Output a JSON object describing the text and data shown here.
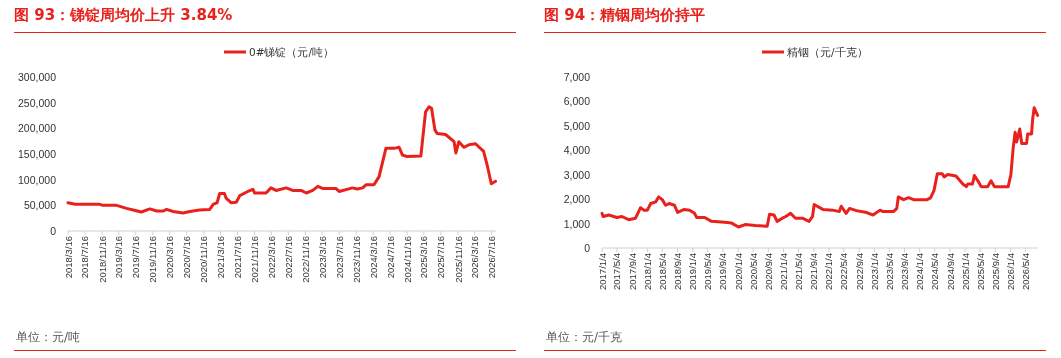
{
  "chart_data": [
    {
      "type": "line",
      "title": "图 93：锑锭周均价上升 3.84%",
      "legend": "top",
      "grid": false,
      "marker": "none",
      "line_style": "solid",
      "xlim": [
        "2018-03-16",
        "2026-08-16"
      ],
      "xticks": [
        {
          "value": "2018-03-16",
          "label": "2018/3/16"
        },
        {
          "value": "2018-07-16",
          "label": "2018/7/16"
        },
        {
          "value": "2018-11-16",
          "label": "2018/11/16"
        },
        {
          "value": "2019-03-16",
          "label": "2019/3/16"
        },
        {
          "value": "2019-07-16",
          "label": "2019/7/16"
        },
        {
          "value": "2019-11-16",
          "label": "2019/11/16"
        },
        {
          "value": "2020-03-16",
          "label": "2020/3/16"
        },
        {
          "value": "2020-07-16",
          "label": "2020/7/16"
        },
        {
          "value": "2020-11-16",
          "label": "2020/11/16"
        },
        {
          "value": "2021-03-16",
          "label": "2021/3/16"
        },
        {
          "value": "2021-07-16",
          "label": "2021/7/16"
        },
        {
          "value": "2021-11-16",
          "label": "2021/11/16"
        },
        {
          "value": "2022-03-16",
          "label": "2022/3/16"
        },
        {
          "value": "2022-07-16",
          "label": "2022/7/16"
        },
        {
          "value": "2022-11-16",
          "label": "2022/11/16"
        },
        {
          "value": "2023-03-16",
          "label": "2023/3/16"
        },
        {
          "value": "2023-07-16",
          "label": "2023/7/16"
        },
        {
          "value": "2023-11-16",
          "label": "2023/11/16"
        },
        {
          "value": "2024-03-16",
          "label": "2024/3/16"
        },
        {
          "value": "2024-07-16",
          "label": "2024/7/16"
        },
        {
          "value": "2024-11-16",
          "label": "2024/11/16"
        },
        {
          "value": "2025-03-16",
          "label": "2025/3/16"
        },
        {
          "value": "2025-07-16",
          "label": "2025/7/16"
        },
        {
          "value": "2025-11-16",
          "label": "2025/11/16"
        },
        {
          "value": "2026-03-16",
          "label": "2026/3/16"
        },
        {
          "value": "2026-07-16",
          "label": "2026/7/16"
        }
      ],
      "ylim": [
        0,
        300000
      ],
      "yticks": [
        {
          "value": 0,
          "label": "0"
        },
        {
          "value": 50000,
          "label": "50,000"
        },
        {
          "value": 100000,
          "label": "100,000"
        },
        {
          "value": 150000,
          "label": "150,000"
        },
        {
          "value": 200000,
          "label": "200,000"
        },
        {
          "value": 250000,
          "label": "250,000"
        },
        {
          "value": 300000,
          "label": "300,000"
        }
      ],
      "annotations": [
        "单位：元/吨"
      ],
      "series": [
        {
          "name": "0#锑锭（元/吨）",
          "color": "#e8211c",
          "x": [
            "2018-03-16",
            "2018-05-07",
            "2018-10-31",
            "2018-11-22",
            "2019-03-01",
            "2019-05-10",
            "2019-06-28",
            "2019-08-25",
            "2019-10-25",
            "2019-12-13",
            "2020-01-31",
            "2020-02-22",
            "2020-04-10",
            "2020-06-19",
            "2020-08-07",
            "2020-10-16",
            "2020-12-28",
            "2021-01-22",
            "2021-02-19",
            "2021-03-10",
            "2021-04-13",
            "2021-04-25",
            "2021-06-01",
            "2021-07-07",
            "2021-08-01",
            "2021-09-28",
            "2021-11-04",
            "2021-11-16",
            "2022-02-06",
            "2022-03-13",
            "2022-04-19",
            "2022-07-01",
            "2022-08-16",
            "2022-10-16",
            "2022-11-22",
            "2023-01-07",
            "2023-02-13",
            "2023-03-19",
            "2023-06-22",
            "2023-07-16",
            "2023-10-19",
            "2023-11-25",
            "2024-01-01",
            "2024-01-25",
            "2024-03-22",
            "2024-04-28",
            "2024-06-16",
            "2024-08-13",
            "2024-09-19",
            "2024-10-13",
            "2024-11-16",
            "2025-02-22",
            "2025-03-28",
            "2025-04-22",
            "2025-05-10",
            "2025-06-03",
            "2025-06-19",
            "2025-08-19",
            "2025-10-19",
            "2025-11-01",
            "2025-11-22",
            "2025-12-28",
            "2026-02-03",
            "2026-03-22",
            "2026-05-19",
            "2026-06-13",
            "2026-07-13",
            "2026-08-13"
          ],
          "values": [
            55000,
            52000,
            52000,
            50000,
            50000,
            44000,
            41000,
            37000,
            43000,
            39000,
            39000,
            42000,
            38000,
            35000,
            38000,
            41000,
            42000,
            52000,
            55000,
            73000,
            73000,
            64000,
            55000,
            56000,
            69000,
            77000,
            81000,
            74000,
            74000,
            84000,
            79000,
            84000,
            79000,
            79000,
            74000,
            79000,
            87000,
            83000,
            83000,
            77000,
            84000,
            82000,
            84000,
            90000,
            90000,
            106000,
            161000,
            161000,
            163000,
            148000,
            145000,
            146000,
            232000,
            242000,
            239000,
            197000,
            190000,
            188000,
            174000,
            152000,
            174000,
            163000,
            168000,
            170000,
            155000,
            129000,
            92000,
            97000
          ]
        }
      ]
    },
    {
      "type": "line",
      "title": "图 94：精铟周均价持平",
      "legend": "top",
      "grid": false,
      "marker": "none",
      "line_style": "solid",
      "xlim": [
        "2017-01-04",
        "2026-08-13"
      ],
      "xticks": [
        {
          "value": "2017-01-04",
          "label": "2017/1/4"
        },
        {
          "value": "2017-05-04",
          "label": "2017/5/4"
        },
        {
          "value": "2017-09-04",
          "label": "2017/9/4"
        },
        {
          "value": "2018-01-04",
          "label": "2018/1/4"
        },
        {
          "value": "2018-05-04",
          "label": "2018/5/4"
        },
        {
          "value": "2018-09-04",
          "label": "2018/9/4"
        },
        {
          "value": "2019-01-04",
          "label": "2019/1/4"
        },
        {
          "value": "2019-05-04",
          "label": "2019/5/4"
        },
        {
          "value": "2019-09-04",
          "label": "2019/9/4"
        },
        {
          "value": "2020-01-04",
          "label": "2020/1/4"
        },
        {
          "value": "2020-05-04",
          "label": "2020/5/4"
        },
        {
          "value": "2020-09-04",
          "label": "2020/9/4"
        },
        {
          "value": "2021-01-04",
          "label": "2021/1/4"
        },
        {
          "value": "2021-05-04",
          "label": "2021/5/4"
        },
        {
          "value": "2021-09-04",
          "label": "2021/9/4"
        },
        {
          "value": "2022-01-04",
          "label": "2022/1/4"
        },
        {
          "value": "2022-05-04",
          "label": "2022/5/4"
        },
        {
          "value": "2022-09-04",
          "label": "2022/9/4"
        },
        {
          "value": "2023-01-04",
          "label": "2023/1/4"
        },
        {
          "value": "2023-05-04",
          "label": "2023/5/4"
        },
        {
          "value": "2023-09-04",
          "label": "2023/9/4"
        },
        {
          "value": "2024-01-04",
          "label": "2024/1/4"
        },
        {
          "value": "2024-05-04",
          "label": "2024/5/4"
        },
        {
          "value": "2024-09-04",
          "label": "2024/9/4"
        },
        {
          "value": "2025-01-04",
          "label": "2025/1/4"
        },
        {
          "value": "2025-05-04",
          "label": "2025/5/4"
        },
        {
          "value": "2025-09-04",
          "label": "2025/9/4"
        },
        {
          "value": "2026-01-04",
          "label": "2026/1/4"
        },
        {
          "value": "2026-05-04",
          "label": "2026/5/4"
        }
      ],
      "ylim": [
        0,
        7000
      ],
      "yticks": [
        {
          "value": 0,
          "label": "0"
        },
        {
          "value": 1000,
          "label": "1,000"
        },
        {
          "value": 2000,
          "label": "2,000"
        },
        {
          "value": 3000,
          "label": "3,000"
        },
        {
          "value": 4000,
          "label": "4,000"
        },
        {
          "value": 5000,
          "label": "5,000"
        },
        {
          "value": 6000,
          "label": "6,000"
        },
        {
          "value": 7000,
          "label": "7,000"
        }
      ],
      "annotations": [
        "单位：元/千克"
      ],
      "series": [
        {
          "name": "精铟（元/千克）",
          "color": "#e8211c",
          "x": [
            "2017-01-04",
            "2017-01-13",
            "2017-02-28",
            "2017-05-04",
            "2017-06-13",
            "2017-08-07",
            "2017-10-01",
            "2017-11-10",
            "2017-12-07",
            "2018-01-04",
            "2018-01-31",
            "2018-03-13",
            "2018-04-04",
            "2018-05-04",
            "2018-05-31",
            "2018-06-28",
            "2018-08-10",
            "2018-09-04",
            "2018-10-28",
            "2018-12-10",
            "2019-01-19",
            "2019-02-04",
            "2019-04-10",
            "2019-06-04",
            "2019-09-19",
            "2019-11-13",
            "2020-01-07",
            "2020-03-01",
            "2020-05-22",
            "2020-08-25",
            "2020-09-13",
            "2020-10-19",
            "2020-11-13",
            "2020-12-25",
            "2021-01-22",
            "2021-03-01",
            "2021-04-10",
            "2021-06-04",
            "2021-07-28",
            "2021-08-25",
            "2021-09-07",
            "2021-11-16",
            "2022-02-04",
            "2022-03-28",
            "2022-04-13",
            "2022-05-22",
            "2022-06-19",
            "2022-08-13",
            "2022-11-04",
            "2022-12-25",
            "2023-02-19",
            "2023-03-16",
            "2023-06-07",
            "2023-07-04",
            "2023-07-16",
            "2023-08-28",
            "2023-10-07",
            "2023-11-16",
            "2024-03-04",
            "2024-03-31",
            "2024-04-28",
            "2024-05-25",
            "2024-07-04",
            "2024-07-19",
            "2024-08-16",
            "2024-10-22",
            "2024-12-16",
            "2025-01-13",
            "2025-01-25",
            "2025-03-04",
            "2025-03-19",
            "2025-04-16",
            "2025-05-13",
            "2025-07-04",
            "2025-07-31",
            "2025-08-28",
            "2025-12-16",
            "2026-01-07",
            "2026-01-25",
            "2026-02-10",
            "2026-02-22",
            "2026-03-19",
            "2026-04-04",
            "2026-05-13",
            "2026-05-22",
            "2026-06-22",
            "2026-07-01",
            "2026-07-13",
            "2026-08-10"
          ],
          "values": [
            1420,
            1290,
            1350,
            1250,
            1290,
            1160,
            1220,
            1650,
            1550,
            1550,
            1820,
            1890,
            2090,
            1980,
            1750,
            1820,
            1750,
            1460,
            1580,
            1550,
            1420,
            1250,
            1250,
            1090,
            1050,
            1020,
            860,
            960,
            920,
            890,
            1380,
            1350,
            1090,
            1220,
            1290,
            1420,
            1220,
            1220,
            1090,
            1290,
            1780,
            1580,
            1550,
            1490,
            1710,
            1420,
            1620,
            1530,
            1450,
            1350,
            1550,
            1490,
            1490,
            1620,
            2090,
            1980,
            2060,
            1980,
            1980,
            2050,
            2350,
            3040,
            3040,
            2910,
            3010,
            2950,
            2620,
            2510,
            2620,
            2620,
            2970,
            2750,
            2510,
            2510,
            2750,
            2510,
            2510,
            3010,
            4080,
            4740,
            4340,
            4870,
            4280,
            4280,
            4670,
            4670,
            5270,
            5740,
            5430
          ]
        }
      ]
    }
  ]
}
